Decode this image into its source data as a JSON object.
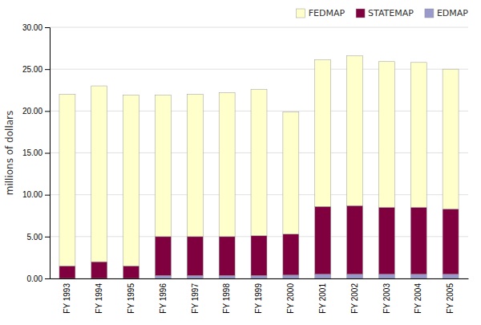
{
  "chart_data": {
    "type": "bar",
    "stacked": true,
    "categories": [
      "FY 1993",
      "FY 1994",
      "FY 1995",
      "FY 1996",
      "FY 1997",
      "FY 1998",
      "FY 1999",
      "FY 2000",
      "FY 2001",
      "FY 2002",
      "FY 2003",
      "FY 2004",
      "FY 2005"
    ],
    "series": [
      {
        "name": "EDMAP",
        "color": "#9999cc",
        "values": [
          0.0,
          0.0,
          0.0,
          0.35,
          0.35,
          0.35,
          0.35,
          0.4,
          0.5,
          0.5,
          0.5,
          0.5,
          0.5
        ]
      },
      {
        "name": "STATEMAP",
        "color": "#80003f",
        "values": [
          1.5,
          2.0,
          1.5,
          4.65,
          4.65,
          4.65,
          4.75,
          4.9,
          8.1,
          8.2,
          8.0,
          8.0,
          7.8
        ]
      },
      {
        "name": "FEDMAP",
        "color": "#ffffcc",
        "values": [
          20.5,
          21.0,
          20.4,
          16.9,
          17.0,
          17.2,
          17.5,
          14.6,
          17.5,
          17.9,
          17.4,
          17.3,
          16.7
        ]
      }
    ],
    "y_label": "millions of dollars",
    "ylim": [
      0,
      30
    ],
    "yticks": [
      {
        "value": 0,
        "label": "0.00"
      },
      {
        "value": 5,
        "label": "5.00"
      },
      {
        "value": 10,
        "label": "10.00"
      },
      {
        "value": 15,
        "label": "15.00"
      },
      {
        "value": 20,
        "label": "20.00"
      },
      {
        "value": 25,
        "label": "25.00"
      },
      {
        "value": 30,
        "label": "30.00"
      }
    ],
    "grid": true,
    "legend": "upper right"
  }
}
